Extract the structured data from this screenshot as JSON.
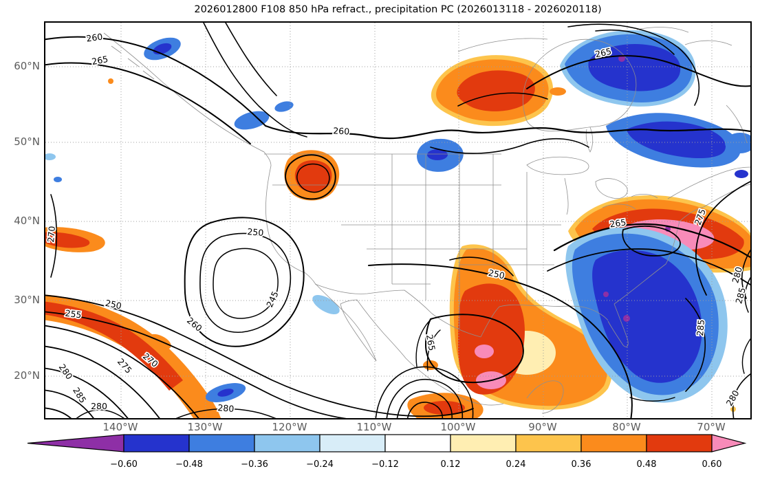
{
  "chart_data": {
    "type": "heatmap",
    "subtype": "filled contour map with overlaid labeled line contours",
    "title": "2026012800 F108 850 hPa refract., precipitation PC (2026013118 - 2026020118)",
    "region": "North America, lat/lon grid",
    "x_axis": {
      "name": "longitude",
      "ticks": [
        "140°W",
        "130°W",
        "120°W",
        "110°W",
        "100°W",
        "90°W",
        "80°W",
        "70°W"
      ]
    },
    "y_axis": {
      "name": "latitude",
      "ticks": [
        "60°N",
        "50°N",
        "40°N",
        "30°N",
        "20°N"
      ]
    },
    "grid": "dotted gray gridlines every 10 degrees",
    "line_contours": {
      "field": "850 hPa refractivity",
      "labeled_levels": [
        245,
        250,
        255,
        260,
        265,
        270,
        275,
        280,
        285
      ],
      "color": "#000000"
    },
    "contour_labels": [
      "260",
      "265",
      "260",
      "265",
      "250",
      "245",
      "260",
      "270",
      "255",
      "250",
      "270",
      "275",
      "280",
      "285",
      "280",
      "265",
      "250",
      "265",
      "275",
      "280",
      "285",
      "285",
      "280",
      "280"
    ],
    "filled_field": {
      "name": "precipitation PC",
      "level_boundaries": [
        -0.6,
        -0.48,
        -0.36,
        -0.24,
        -0.12,
        0.12,
        0.24,
        0.36,
        0.48,
        0.6
      ],
      "extend": "both"
    },
    "colorbar": {
      "orientation": "horizontal",
      "tick_labels": [
        "−0.60",
        "−0.48",
        "−0.36",
        "−0.24",
        "−0.12",
        "0.12",
        "0.24",
        "0.36",
        "0.48",
        "0.60"
      ],
      "colors": {
        "under": "#8e2fa6",
        "segments": [
          "#2533cd",
          "#3e7ee0",
          "#8ec6ee",
          "#d8edf8",
          "#ffffff",
          "#ffeeb2",
          "#fdc44c",
          "#fb8b1c",
          "#e23a0e"
        ],
        "over": "#f88bb9",
        "outline": "#000000"
      }
    },
    "anomaly_regions": [
      {
        "sign": "positive",
        "approx_location": "97°W 57°N (northern Canada)",
        "peak_bin": "0.48 to 0.60"
      },
      {
        "sign": "positive",
        "approx_location": "122°W 47°N (Pacific Northwest)",
        "peak_bin": "0.48 to 0.60"
      },
      {
        "sign": "positive",
        "approx_location": "76°W 39°N (Northeast US coast)",
        "peak_bin": "above 0.60"
      },
      {
        "sign": "positive",
        "approx_location": "93°W 26°N (Texas / Gulf of Mexico)",
        "peak_bin": "above 0.60"
      },
      {
        "sign": "positive",
        "approx_location": "139°W 25°N (subtropical east Pacific)",
        "peak_bin": "0.48 to 0.60"
      },
      {
        "sign": "negative",
        "approx_location": "81°W 60°N (Hudson Bay / Quebec)",
        "peak_bin": "below -0.60"
      },
      {
        "sign": "negative",
        "approx_location": "74°W 51°N (Quebec / Labrador)",
        "peak_bin": "-0.48 to -0.60"
      },
      {
        "sign": "negative",
        "approx_location": "77°W 31°N (Southeast US / west Atlantic)",
        "peak_bin": "below -0.60"
      }
    ]
  }
}
